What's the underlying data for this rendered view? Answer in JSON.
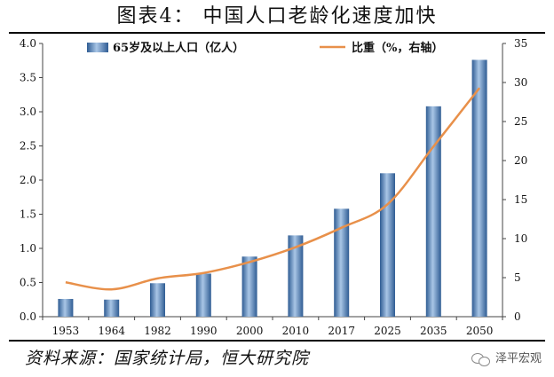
{
  "title": "图表4：  中国人口老龄化速度加快",
  "source": "资料来源：国家统计局，恒大研究院",
  "watermark": "泽平宏观",
  "chart_data": {
    "type": "bar",
    "categories": [
      "1953",
      "1964",
      "1982",
      "1990",
      "2000",
      "2010",
      "2017",
      "2025",
      "2035",
      "2050"
    ],
    "series": [
      {
        "name": "65岁及以上人口（亿人）",
        "type": "bar",
        "axis": "left",
        "values": [
          0.26,
          0.25,
          0.49,
          0.63,
          0.88,
          1.19,
          1.58,
          2.1,
          3.08,
          3.76
        ]
      },
      {
        "name": "比重（%，右轴）",
        "type": "line",
        "axis": "right",
        "values": [
          4.4,
          3.5,
          4.9,
          5.6,
          7.0,
          8.9,
          11.4,
          14.4,
          21.8,
          29.3
        ]
      }
    ],
    "left_axis": {
      "ylim": [
        0,
        4.0
      ],
      "ticks": [
        "0.0",
        "0.5",
        "1.0",
        "1.5",
        "2.0",
        "2.5",
        "3.0",
        "3.5",
        "4.0"
      ]
    },
    "right_axis": {
      "ylim": [
        0,
        35
      ],
      "ticks": [
        "0",
        "5",
        "10",
        "15",
        "20",
        "25",
        "30",
        "35"
      ]
    },
    "grid": false,
    "legend": "top",
    "colors": {
      "bar": "#3e6fa8",
      "bar_highlight": "#a9c6e6",
      "line": "#e8904a"
    }
  }
}
